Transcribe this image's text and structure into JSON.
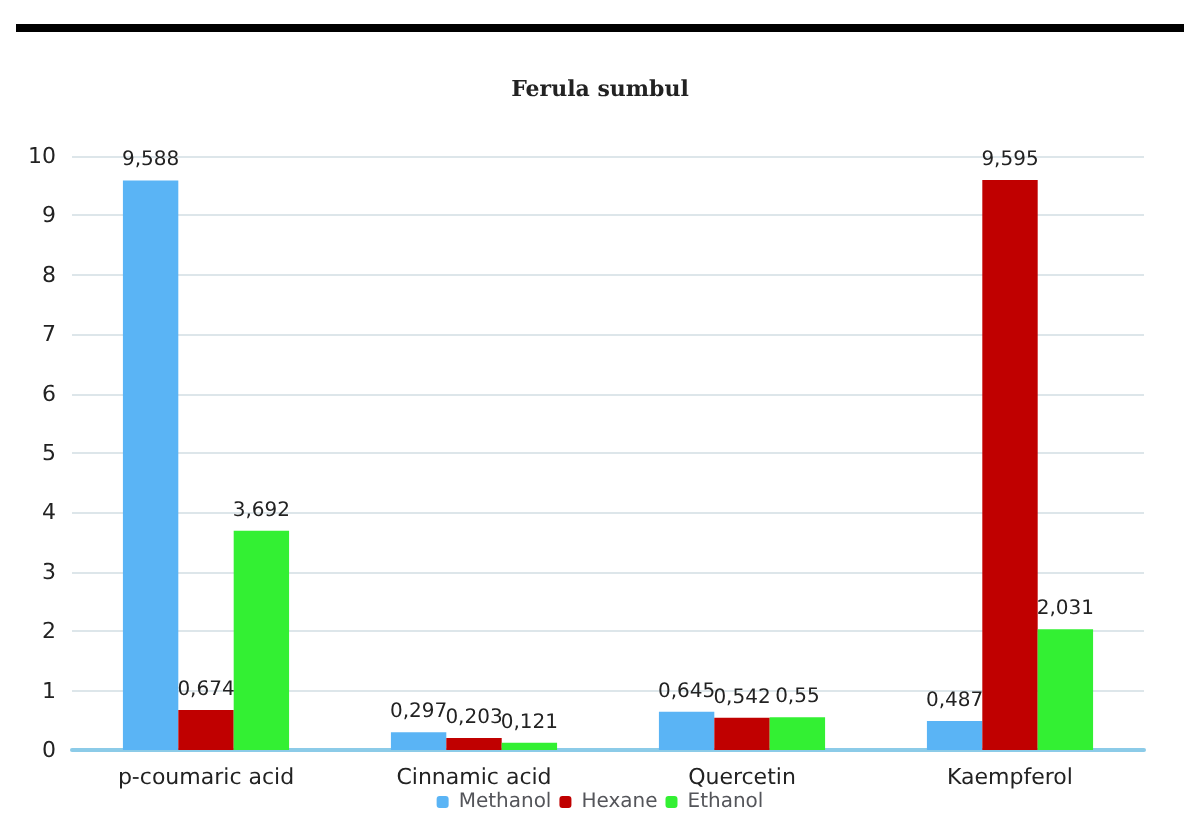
{
  "chart_data": {
    "type": "bar",
    "title": "Ferula sumbul",
    "categories": [
      "p-coumaric acid",
      "Cinnamic acid",
      "Quercetin",
      "Kaempferol"
    ],
    "series": [
      {
        "name": "Methanol",
        "color": "#5ab4f5",
        "values": [
          9.588,
          0.297,
          0.645,
          0.487
        ],
        "value_labels": [
          "9,588",
          "0,297",
          "0,645",
          "0,487"
        ]
      },
      {
        "name": "Hexane",
        "color": "#c00000",
        "values": [
          0.674,
          0.203,
          0.542,
          9.595
        ],
        "value_labels": [
          "0,674",
          "0,203",
          "0,542",
          "9,595"
        ]
      },
      {
        "name": "Ethanol",
        "color": "#33f033",
        "values": [
          3.692,
          0.121,
          0.55,
          2.031
        ],
        "value_labels": [
          "3,692",
          "0,121",
          "0,55",
          "2,031"
        ]
      }
    ],
    "ylim": [
      0,
      10
    ],
    "yticks": [
      0,
      1,
      2,
      3,
      4,
      5,
      6,
      7,
      8,
      9,
      10
    ],
    "grid": "y",
    "legend": "bottom"
  }
}
